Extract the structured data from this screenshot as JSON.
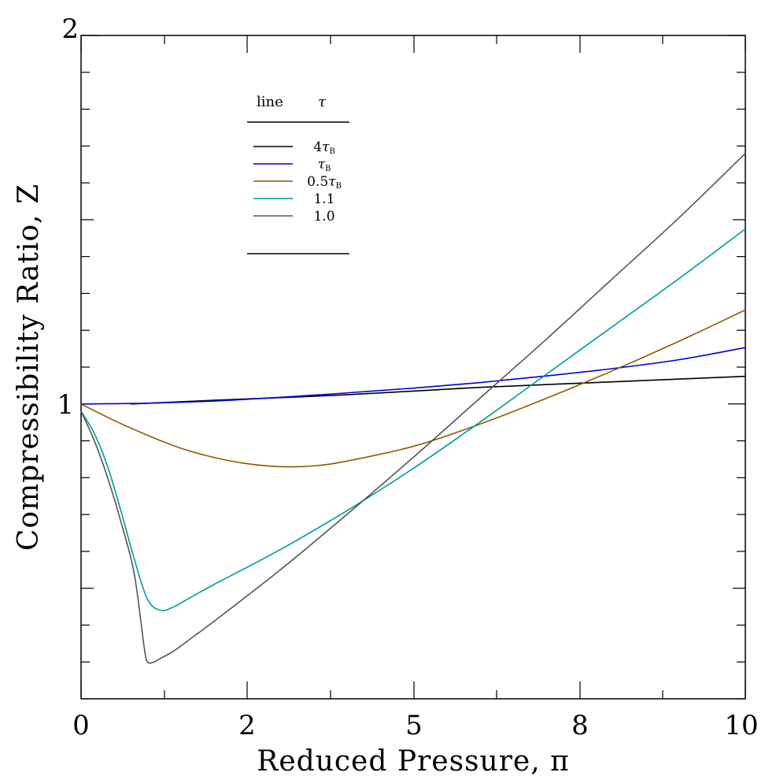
{
  "chart_data": {
    "type": "line",
    "xlabel": "Reduced Pressure, π",
    "ylabel": "Compressibility Ratio, Z",
    "xlim": [
      0,
      10
    ],
    "ylim": [
      0.2,
      2
    ],
    "x_tick_labels": [
      "0",
      "2",
      "5",
      "8",
      "10"
    ],
    "y_tick_labels": [
      "1",
      "2"
    ],
    "legend": {
      "header": [
        "line",
        "τ"
      ],
      "placement": "top-left"
    },
    "series": [
      {
        "name": "4τB",
        "color": "#000000",
        "x": [
          0.75,
          2,
          4,
          6,
          8,
          10
        ],
        "y": [
          1.0,
          1.01,
          1.025,
          1.045,
          1.06,
          1.075
        ]
      },
      {
        "name": "τB",
        "color": "#0000dd",
        "x": [
          0,
          1,
          2,
          3,
          4,
          5,
          6,
          7,
          8,
          9,
          10
        ],
        "y": [
          1.0,
          1.002,
          1.008,
          1.018,
          1.03,
          1.043,
          1.058,
          1.076,
          1.096,
          1.12,
          1.153
        ]
      },
      {
        "name": "0.5τB",
        "color": "#8b5a00",
        "x": [
          0,
          0.5,
          1,
          1.5,
          2,
          2.5,
          3,
          3.5,
          4,
          5,
          6,
          7,
          8,
          9,
          10
        ],
        "y": [
          1.0,
          0.955,
          0.915,
          0.88,
          0.855,
          0.838,
          0.83,
          0.832,
          0.845,
          0.885,
          0.945,
          1.015,
          1.09,
          1.17,
          1.255
        ]
      },
      {
        "name": "1.1",
        "color": "#009999",
        "x": [
          0,
          0.2,
          0.4,
          0.6,
          0.8,
          1.0,
          1.2,
          1.4,
          1.6,
          2.0,
          3.0,
          4.0,
          5.0,
          6.0,
          7.0,
          8.0,
          9.0,
          10.0
        ],
        "y": [
          0.98,
          0.92,
          0.83,
          0.71,
          0.58,
          0.47,
          0.44,
          0.45,
          0.47,
          0.51,
          0.605,
          0.71,
          0.825,
          0.95,
          1.08,
          1.21,
          1.34,
          1.475
        ]
      },
      {
        "name": "1.0",
        "color": "#555555",
        "x": [
          0,
          0.2,
          0.4,
          0.6,
          0.8,
          0.95,
          1.0,
          1.1,
          1.2,
          1.4,
          1.7,
          2.0,
          3.0,
          4.0,
          5.0,
          6.0,
          7.0,
          8.0,
          9.0,
          10.0
        ],
        "y": [
          0.98,
          0.9,
          0.8,
          0.68,
          0.54,
          0.34,
          0.3,
          0.3,
          0.31,
          0.33,
          0.37,
          0.41,
          0.55,
          0.7,
          0.855,
          1.015,
          1.175,
          1.34,
          1.505,
          1.68
        ]
      }
    ],
    "legend_label_parts": [
      {
        "pre": "4",
        "tau": "τ",
        "sub": "B"
      },
      {
        "pre": "",
        "tau": "τ",
        "sub": "B"
      },
      {
        "pre": "0.5",
        "tau": "τ",
        "sub": "B"
      },
      {
        "pre": "1.1",
        "tau": "",
        "sub": ""
      },
      {
        "pre": "1.0",
        "tau": "",
        "sub": ""
      }
    ]
  }
}
